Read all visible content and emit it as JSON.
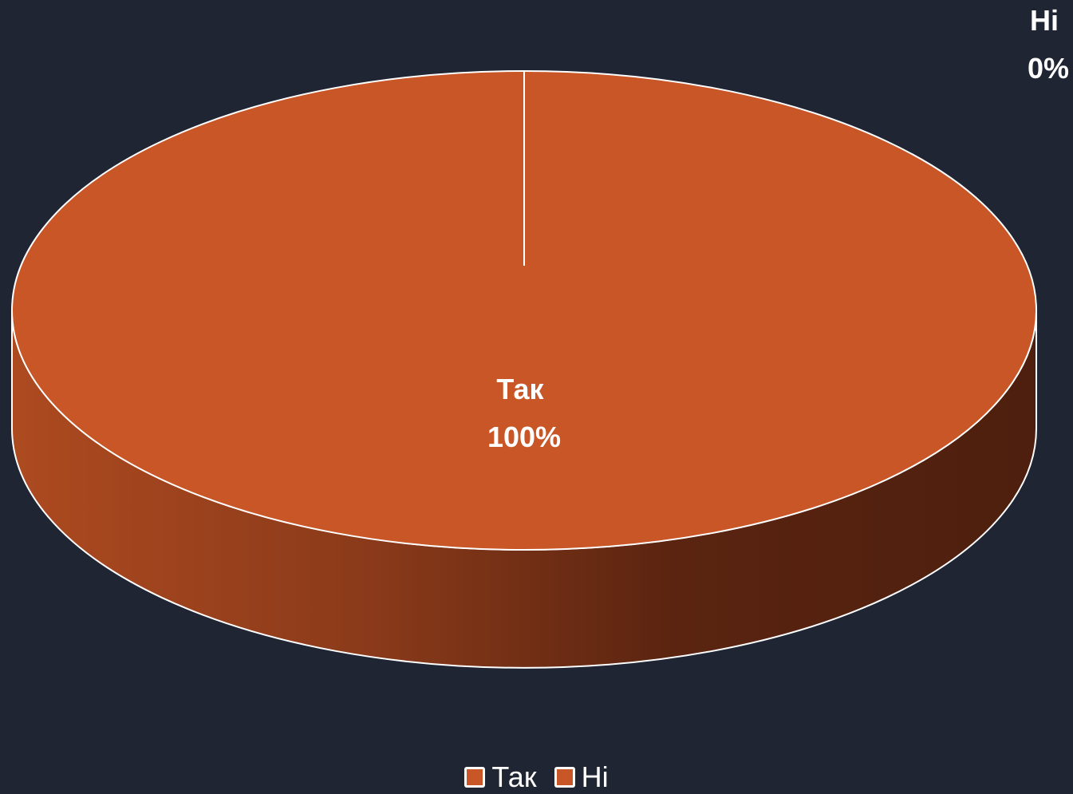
{
  "chart_data": {
    "type": "pie",
    "style": "3d",
    "categories": [
      "Так",
      "Ні"
    ],
    "values": [
      100,
      0
    ],
    "data_labels": [
      {
        "category": "Так",
        "percent": "100%"
      },
      {
        "category": "Ні",
        "percent": "0%"
      }
    ],
    "legend": {
      "placement": "bottom",
      "entries": [
        "Так",
        "Ні"
      ]
    },
    "colors": {
      "background": "#1f2532",
      "slice_top": "#c85626",
      "slice_side_light": "#ad4a20",
      "slice_side_dark": "#52200f",
      "outline": "#ffffff"
    }
  }
}
